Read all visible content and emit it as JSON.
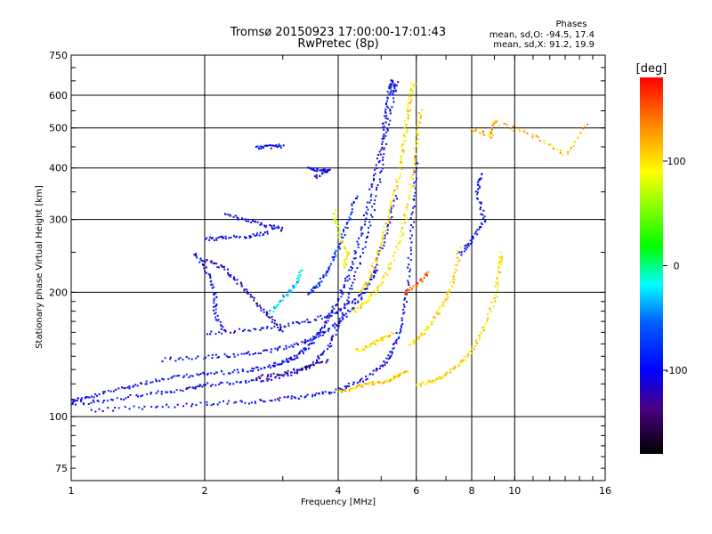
{
  "chart_data": {
    "type": "scatter",
    "title": "Tromsø 20150923 17:00:00-17:01:43",
    "subtitle": "RwPretec (8p)",
    "xlabel": "Frequency [MHz]",
    "ylabel": "Stationary phase Virtual Height [km]",
    "xscale": "log",
    "yscale": "log",
    "xlim": [
      1,
      16
    ],
    "ylim": [
      70,
      750
    ],
    "x_ticks": [
      1,
      2,
      4,
      6,
      8,
      10,
      16
    ],
    "x_tick_labels": [
      "1",
      "2",
      "4",
      "6",
      "8",
      "10",
      "16"
    ],
    "x_gridlines": [
      2,
      4,
      6,
      8,
      10
    ],
    "y_ticks": [
      75,
      100,
      200,
      300,
      400,
      500,
      600,
      750
    ],
    "y_tick_labels": [
      "75",
      "100",
      "200",
      "300",
      "400",
      "500",
      "600",
      "750"
    ],
    "y_gridlines": [
      100,
      200,
      300,
      400,
      500,
      600
    ],
    "grid": true,
    "phases_header": "Phases",
    "phase_stats": [
      "mean, sd,O: -94.5, 17.4",
      "mean, sd,X:  91.2, 19.9"
    ],
    "colorbar": {
      "label": "[deg]",
      "range": [
        -180,
        180
      ],
      "ticks": [
        100,
        0,
        -100
      ],
      "tick_labels": [
        "100",
        "0",
        "-100"
      ]
    },
    "traces": [
      {
        "phase": -100,
        "points": [
          [
            1.0,
            110
          ],
          [
            1.1,
            112
          ],
          [
            1.3,
            118
          ],
          [
            1.5,
            122
          ],
          [
            1.8,
            126
          ],
          [
            2.1,
            128
          ],
          [
            2.5,
            130
          ],
          [
            2.8,
            133
          ],
          [
            3.0,
            136
          ],
          [
            3.2,
            140
          ],
          [
            3.4,
            148
          ],
          [
            3.6,
            160
          ],
          [
            3.8,
            175
          ],
          [
            4.0,
            195
          ],
          [
            4.2,
            220
          ],
          [
            4.4,
            260
          ],
          [
            4.6,
            310
          ],
          [
            4.8,
            380
          ],
          [
            5.0,
            460
          ],
          [
            5.1,
            540
          ],
          [
            5.2,
            620
          ],
          [
            5.3,
            660
          ]
        ]
      },
      {
        "phase": -100,
        "points": [
          [
            1.0,
            108
          ],
          [
            1.2,
            110
          ],
          [
            1.5,
            114
          ],
          [
            1.8,
            117
          ],
          [
            2.0,
            120
          ],
          [
            2.4,
            122
          ],
          [
            2.8,
            124
          ],
          [
            3.2,
            128
          ],
          [
            3.5,
            135
          ],
          [
            3.8,
            148
          ],
          [
            4.0,
            170
          ],
          [
            4.3,
            210
          ],
          [
            4.6,
            270
          ],
          [
            4.9,
            360
          ],
          [
            5.1,
            470
          ],
          [
            5.3,
            600
          ],
          [
            5.4,
            650
          ]
        ]
      },
      {
        "phase": -100,
        "points": [
          [
            1.1,
            104
          ],
          [
            1.5,
            106
          ],
          [
            2.0,
            108
          ],
          [
            2.5,
            109
          ],
          [
            3.0,
            111
          ],
          [
            3.5,
            113
          ],
          [
            4.0,
            117
          ],
          [
            4.5,
            123
          ],
          [
            5.0,
            133
          ],
          [
            5.3,
            145
          ],
          [
            5.5,
            165
          ],
          [
            5.7,
            200
          ],
          [
            5.8,
            260
          ],
          [
            5.9,
            340
          ],
          [
            6.0,
            430
          ]
        ]
      },
      {
        "phase": -100,
        "points": [
          [
            1.6,
            138
          ],
          [
            2.0,
            140
          ],
          [
            2.4,
            142
          ],
          [
            2.8,
            145
          ],
          [
            3.2,
            150
          ],
          [
            3.6,
            158
          ],
          [
            4.0,
            170
          ],
          [
            4.4,
            190
          ],
          [
            4.8,
            225
          ],
          [
            5.1,
            280
          ],
          [
            5.4,
            350
          ]
        ]
      },
      {
        "phase": -100,
        "points": [
          [
            2.0,
            160
          ],
          [
            2.5,
            163
          ],
          [
            3.0,
            167
          ],
          [
            3.5,
            172
          ],
          [
            4.0,
            182
          ],
          [
            4.5,
            200
          ],
          [
            4.9,
            230
          ]
        ]
      },
      {
        "phase": -100,
        "points": [
          [
            2.0,
            270
          ],
          [
            2.2,
            272
          ],
          [
            2.5,
            275
          ],
          [
            2.8,
            280
          ]
        ]
      },
      {
        "phase": -100,
        "points": [
          [
            2.2,
            310
          ],
          [
            2.5,
            300
          ],
          [
            2.8,
            290
          ],
          [
            3.0,
            285
          ]
        ]
      },
      {
        "phase": -120,
        "points": [
          [
            2.0,
            240
          ],
          [
            2.2,
            230
          ],
          [
            2.4,
            210
          ],
          [
            2.6,
            190
          ],
          [
            2.8,
            175
          ],
          [
            3.0,
            160
          ]
        ]
      },
      {
        "phase": -100,
        "points": [
          [
            1.9,
            250
          ],
          [
            2.0,
            230
          ],
          [
            2.1,
            200
          ],
          [
            2.1,
            180
          ],
          [
            2.2,
            160
          ]
        ]
      },
      {
        "phase": -80,
        "points": [
          [
            3.4,
            200
          ],
          [
            3.6,
            210
          ],
          [
            3.8,
            230
          ],
          [
            4.0,
            260
          ],
          [
            4.2,
            300
          ],
          [
            4.4,
            350
          ]
        ]
      },
      {
        "phase": -100,
        "points": [
          [
            2.6,
            450
          ],
          [
            2.8,
            452
          ],
          [
            3.0,
            455
          ]
        ]
      },
      {
        "phase": -100,
        "points": [
          [
            3.4,
            400
          ],
          [
            3.6,
            398
          ],
          [
            3.8,
            395
          ],
          [
            3.5,
            380
          ]
        ]
      },
      {
        "phase": 100,
        "points": [
          [
            4.5,
            200
          ],
          [
            4.7,
            220
          ],
          [
            4.9,
            250
          ],
          [
            5.1,
            290
          ],
          [
            5.3,
            340
          ],
          [
            5.5,
            400
          ],
          [
            5.6,
            460
          ],
          [
            5.7,
            530
          ],
          [
            5.8,
            600
          ],
          [
            5.9,
            650
          ]
        ]
      },
      {
        "phase": 100,
        "points": [
          [
            4.3,
            180
          ],
          [
            4.6,
            190
          ],
          [
            4.9,
            205
          ],
          [
            5.2,
            230
          ],
          [
            5.5,
            270
          ],
          [
            5.7,
            320
          ],
          [
            5.9,
            400
          ],
          [
            6.0,
            480
          ],
          [
            6.1,
            560
          ]
        ]
      },
      {
        "phase": 100,
        "points": [
          [
            5.8,
            150
          ],
          [
            6.2,
            160
          ],
          [
            6.6,
            175
          ],
          [
            7.0,
            195
          ],
          [
            7.3,
            220
          ],
          [
            7.5,
            260
          ]
        ]
      },
      {
        "phase": 100,
        "points": [
          [
            6.0,
            120
          ],
          [
            6.5,
            122
          ],
          [
            7.0,
            128
          ],
          [
            7.5,
            135
          ],
          [
            8.0,
            145
          ],
          [
            8.5,
            165
          ],
          [
            9.0,
            195
          ],
          [
            9.2,
            230
          ],
          [
            9.3,
            250
          ]
        ]
      },
      {
        "phase": 110,
        "points": [
          [
            4.0,
            115
          ],
          [
            4.3,
            118
          ],
          [
            4.6,
            120
          ],
          [
            5.0,
            122
          ],
          [
            5.4,
            125
          ],
          [
            5.7,
            130
          ]
        ]
      },
      {
        "phase": 100,
        "points": [
          [
            4.4,
            145
          ],
          [
            4.7,
            150
          ],
          [
            5.0,
            155
          ],
          [
            5.3,
            160
          ]
        ]
      },
      {
        "phase": 90,
        "points": [
          [
            4.1,
            230
          ],
          [
            4.2,
            250
          ],
          [
            4.0,
            280
          ],
          [
            3.9,
            320
          ]
        ]
      },
      {
        "phase": -140,
        "points": [
          [
            2.6,
            125
          ],
          [
            3.0,
            128
          ],
          [
            3.4,
            132
          ],
          [
            3.8,
            138
          ]
        ]
      },
      {
        "phase": -30,
        "points": [
          [
            2.8,
            180
          ],
          [
            3.0,
            195
          ],
          [
            3.2,
            210
          ],
          [
            3.3,
            230
          ]
        ]
      },
      {
        "phase": 150,
        "points": [
          [
            5.6,
            200
          ],
          [
            6.0,
            210
          ],
          [
            6.4,
            225
          ]
        ]
      },
      {
        "phase": 120,
        "points": [
          [
            8.0,
            500
          ],
          [
            8.8,
            480
          ],
          [
            9.0,
            520
          ],
          [
            11.0,
            480
          ],
          [
            13.0,
            430
          ],
          [
            14.5,
            520
          ]
        ]
      },
      {
        "phase": -100,
        "points": [
          [
            7.5,
            250
          ],
          [
            8.0,
            270
          ],
          [
            8.5,
            300
          ],
          [
            8.2,
            350
          ],
          [
            8.4,
            390
          ]
        ]
      }
    ]
  }
}
